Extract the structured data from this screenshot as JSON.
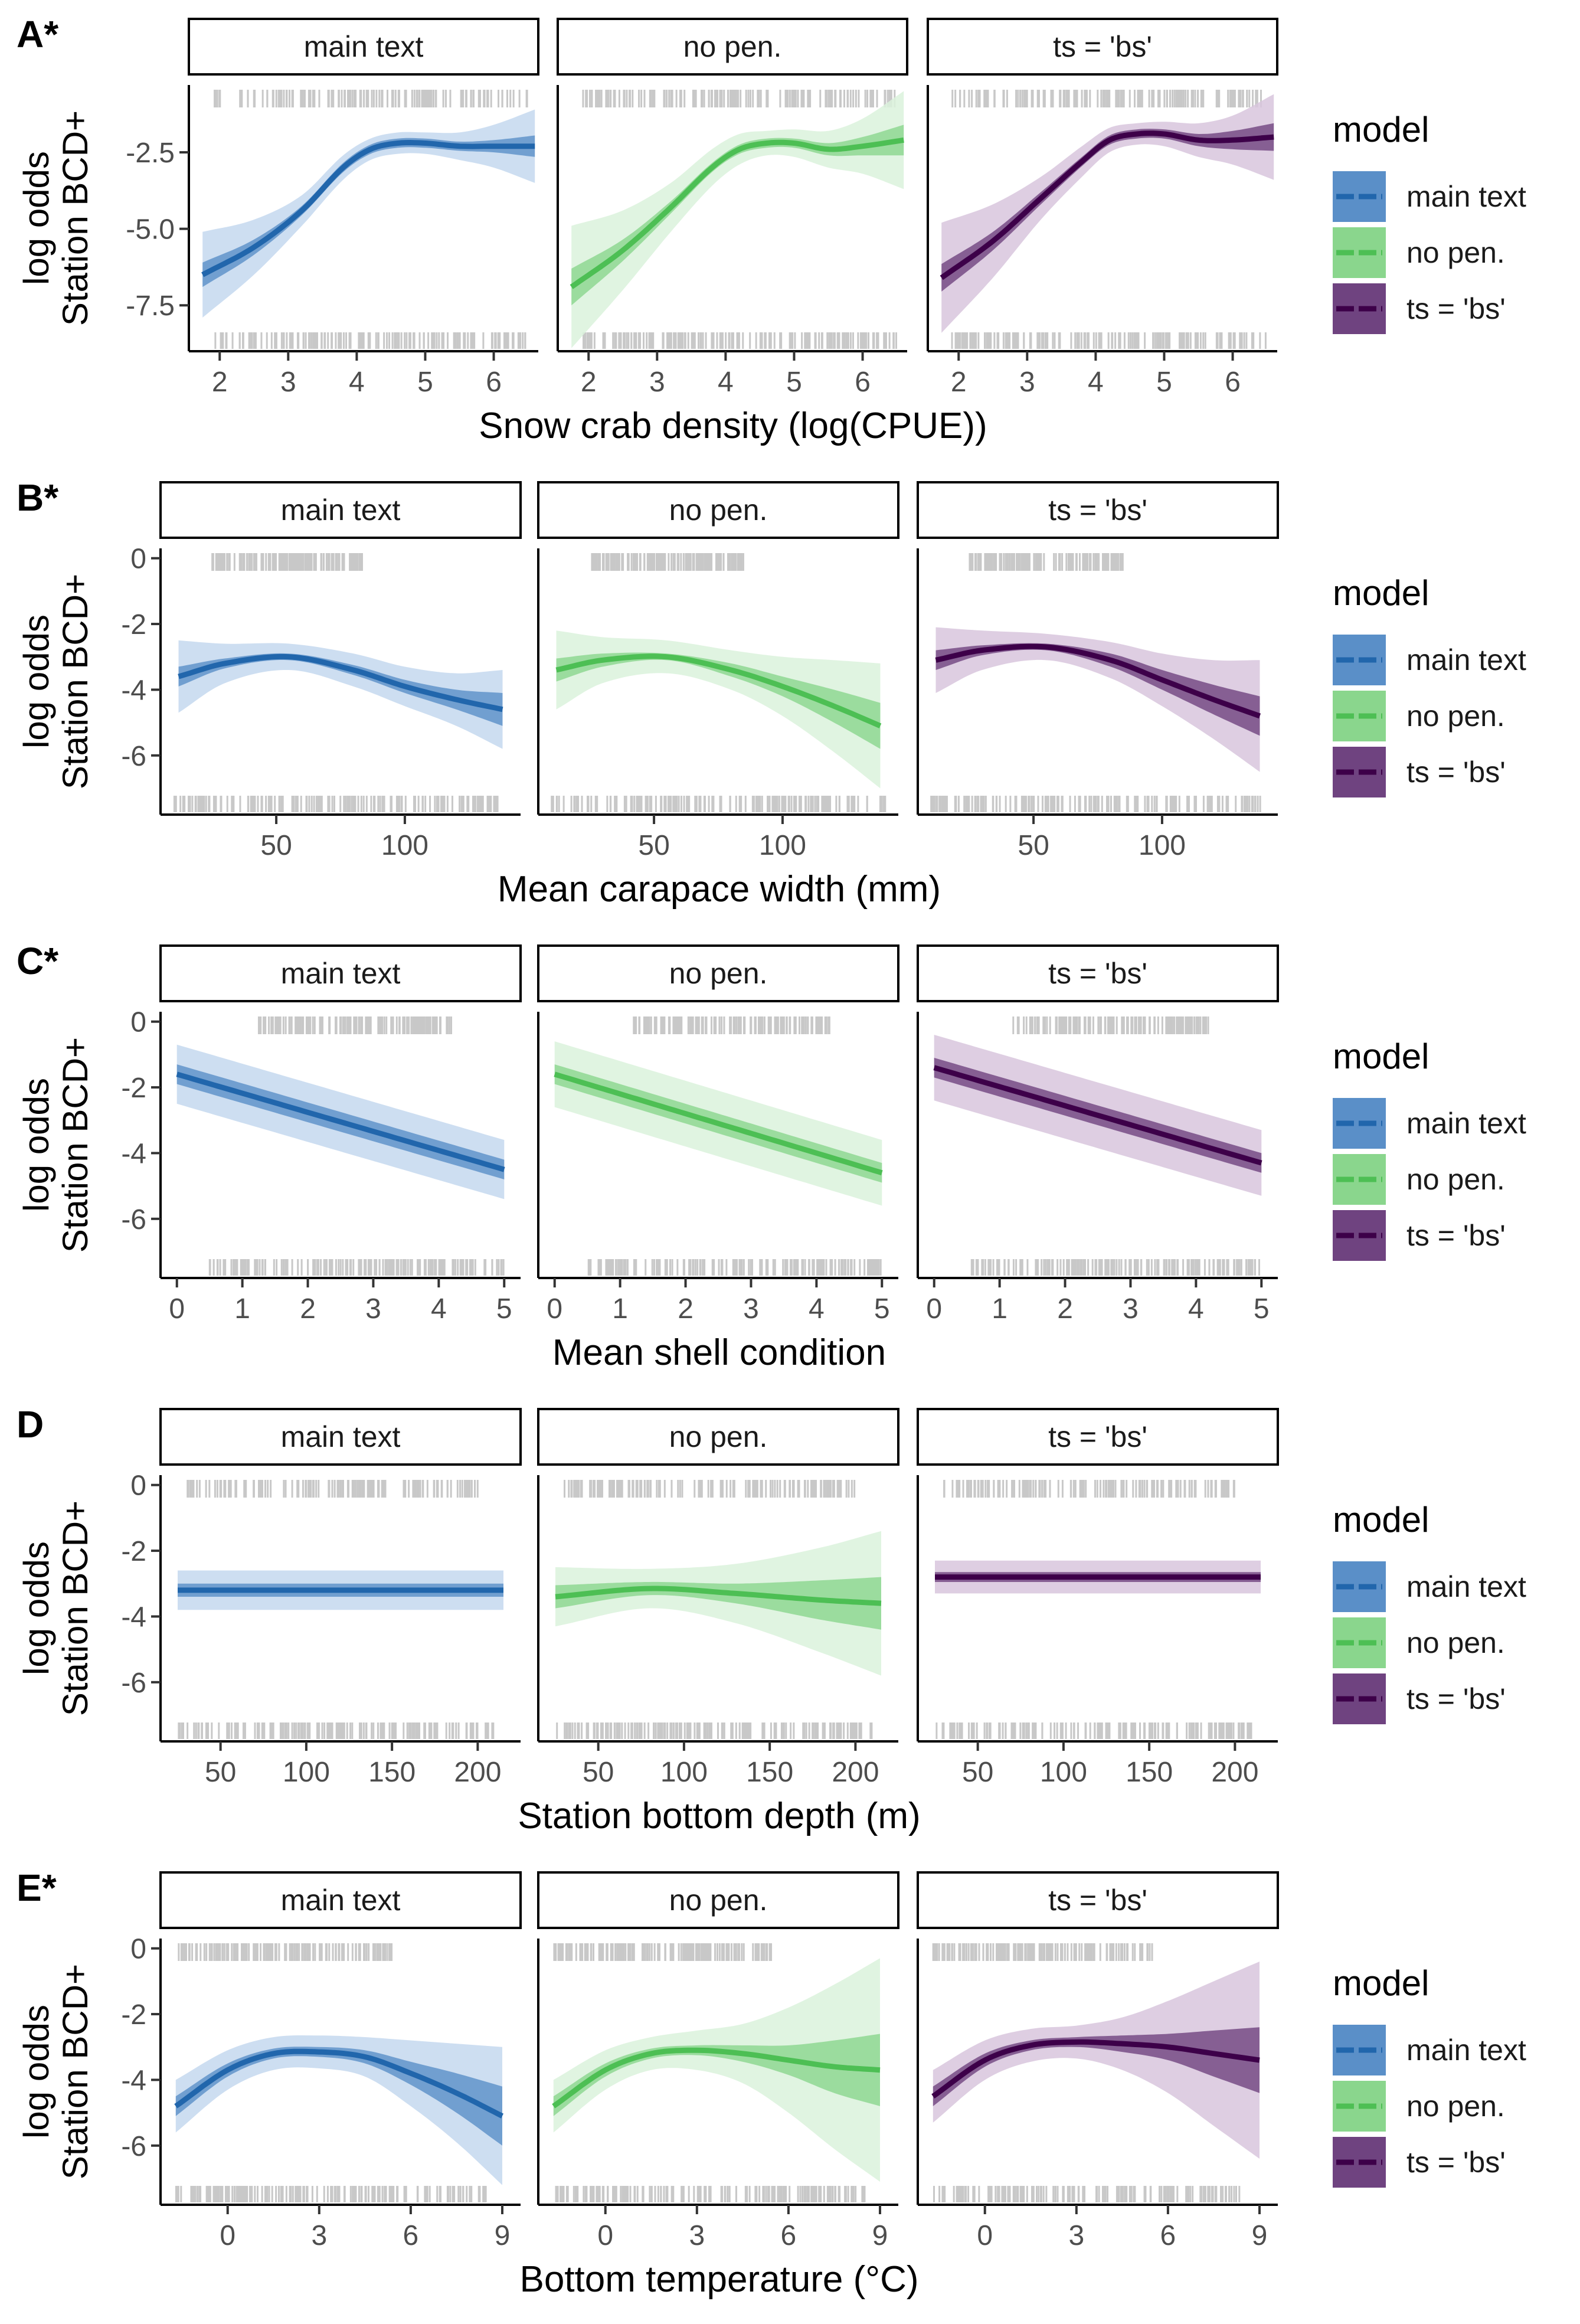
{
  "figure": {
    "ylabel": [
      "log odds",
      "Station BCD+"
    ],
    "facet_labels": [
      "main text",
      "no pen.",
      "ts = 'bs'"
    ],
    "legend": {
      "title": "model",
      "items": [
        {
          "label": "main text",
          "color": "#2166ac"
        },
        {
          "label": "no pen.",
          "color": "#4dbf54"
        },
        {
          "label": "ts = 'bs'",
          "color": "#3d0049"
        }
      ]
    },
    "colors": {
      "main text": {
        "line": "#2166ac",
        "inner": "#5a8fc8",
        "outer": "#c4d8ee"
      },
      "no pen.": {
        "line": "#4dbf54",
        "inner": "#8ad68d",
        "outer": "#dbf2dc"
      },
      "ts = 'bs'": {
        "line": "#3d0049",
        "inner": "#6f4380",
        "outer": "#d8c6dd"
      },
      "rug": "#c8c8c8"
    }
  },
  "chart_data": [
    {
      "id": "A",
      "tag": "A*",
      "type": "line",
      "xlabel": "Snow crab density (log(CPUE))",
      "xlim": [
        1.55,
        6.65
      ],
      "ylim": [
        -9.0,
        -0.3
      ],
      "xticks": [
        2,
        3,
        4,
        5,
        6
      ],
      "yticks": [
        -2.5,
        -5.0,
        -7.5
      ],
      "yticklabels": [
        "-2.5",
        "-5.0",
        "-7.5"
      ],
      "rug_x": [
        1.9,
        6.5
      ],
      "series": [
        {
          "name": "main text",
          "x": [
            1.75,
            2.5,
            3.2,
            3.8,
            4.2,
            4.6,
            5.0,
            5.5,
            6.0,
            6.6
          ],
          "y": [
            -6.5,
            -5.6,
            -4.4,
            -3.0,
            -2.4,
            -2.2,
            -2.2,
            -2.3,
            -2.3,
            -2.3
          ],
          "inner": [
            0.4,
            0.25,
            0.15,
            0.15,
            0.15,
            0.15,
            0.15,
            0.15,
            0.2,
            0.35
          ],
          "outer": [
            1.4,
            0.9,
            0.5,
            0.4,
            0.35,
            0.35,
            0.35,
            0.45,
            0.7,
            1.2
          ]
        },
        {
          "name": "no pen.",
          "x": [
            1.75,
            2.5,
            3.2,
            3.8,
            4.2,
            4.6,
            5.0,
            5.5,
            6.0,
            6.6
          ],
          "y": [
            -6.9,
            -5.7,
            -4.3,
            -3.0,
            -2.4,
            -2.2,
            -2.2,
            -2.4,
            -2.3,
            -2.1
          ],
          "inner": [
            0.6,
            0.35,
            0.2,
            0.15,
            0.15,
            0.15,
            0.15,
            0.2,
            0.3,
            0.5
          ],
          "outer": [
            2.0,
            1.3,
            0.8,
            0.6,
            0.5,
            0.4,
            0.45,
            0.6,
            0.9,
            1.6
          ]
        },
        {
          "name": "ts = 'bs'",
          "x": [
            1.75,
            2.5,
            3.2,
            3.8,
            4.2,
            4.6,
            5.0,
            5.5,
            6.0,
            6.6
          ],
          "y": [
            -6.6,
            -5.4,
            -4.0,
            -2.8,
            -2.1,
            -1.9,
            -1.9,
            -2.1,
            -2.1,
            -2.0
          ],
          "inner": [
            0.45,
            0.3,
            0.2,
            0.15,
            0.15,
            0.15,
            0.15,
            0.2,
            0.3,
            0.45
          ],
          "outer": [
            1.8,
            1.2,
            0.7,
            0.5,
            0.4,
            0.35,
            0.4,
            0.55,
            0.8,
            1.4
          ]
        }
      ]
    },
    {
      "id": "B",
      "tag": "B*",
      "type": "line",
      "xlabel": "Mean carapace width (mm)",
      "xlim": [
        5,
        145
      ],
      "ylim": [
        -7.8,
        0.3
      ],
      "xticks": [
        50,
        100
      ],
      "yticks": [
        0,
        -2,
        -4,
        -6
      ],
      "yticklabels": [
        "0",
        "-2",
        "-4",
        "-6"
      ],
      "rug_top": [
        25,
        85
      ],
      "rug_x": [
        10,
        140
      ],
      "series": [
        {
          "name": "main text",
          "x": [
            12,
            30,
            55,
            80,
            100,
            120,
            138
          ],
          "y": [
            -3.6,
            -3.2,
            -3.0,
            -3.4,
            -3.9,
            -4.3,
            -4.6
          ],
          "inner": [
            0.3,
            0.15,
            0.1,
            0.15,
            0.2,
            0.3,
            0.5
          ],
          "outer": [
            1.1,
            0.6,
            0.4,
            0.5,
            0.6,
            0.8,
            1.2
          ]
        },
        {
          "name": "no pen.",
          "x": [
            12,
            30,
            55,
            80,
            100,
            120,
            138
          ],
          "y": [
            -3.4,
            -3.1,
            -3.0,
            -3.4,
            -3.9,
            -4.5,
            -5.1
          ],
          "inner": [
            0.35,
            0.2,
            0.1,
            0.2,
            0.3,
            0.5,
            0.7
          ],
          "outer": [
            1.2,
            0.7,
            0.5,
            0.6,
            0.9,
            1.4,
            1.9
          ]
        },
        {
          "name": "ts = 'bs'",
          "x": [
            12,
            30,
            55,
            80,
            100,
            120,
            138
          ],
          "y": [
            -3.1,
            -2.8,
            -2.7,
            -3.1,
            -3.7,
            -4.3,
            -4.8
          ],
          "inner": [
            0.3,
            0.15,
            0.1,
            0.2,
            0.3,
            0.45,
            0.6
          ],
          "outer": [
            1.0,
            0.6,
            0.4,
            0.55,
            0.8,
            1.2,
            1.7
          ]
        }
      ]
    },
    {
      "id": "C",
      "tag": "C*",
      "type": "line",
      "xlabel": "Mean shell condition",
      "xlim": [
        -0.25,
        5.25
      ],
      "ylim": [
        -7.8,
        0.3
      ],
      "xticks": [
        0,
        1,
        2,
        3,
        4,
        5
      ],
      "yticks": [
        0,
        -2,
        -4,
        -6
      ],
      "yticklabels": [
        "0",
        "-2",
        "-4",
        "-6"
      ],
      "rug_top": [
        1.2,
        4.2
      ],
      "rug_x": [
        0.5,
        5.0
      ],
      "series": [
        {
          "name": "main text",
          "x": [
            0,
            5
          ],
          "y": [
            -1.6,
            -4.5
          ],
          "inner": [
            0.3,
            0.3
          ],
          "outer": [
            0.9,
            0.9
          ]
        },
        {
          "name": "no pen.",
          "x": [
            0,
            5
          ],
          "y": [
            -1.6,
            -4.6
          ],
          "inner": [
            0.3,
            0.3
          ],
          "outer": [
            1.0,
            1.0
          ]
        },
        {
          "name": "ts = 'bs'",
          "x": [
            0,
            5
          ],
          "y": [
            -1.4,
            -4.3
          ],
          "inner": [
            0.3,
            0.3
          ],
          "outer": [
            1.0,
            1.0
          ]
        }
      ]
    },
    {
      "id": "D",
      "tag": "D",
      "type": "line",
      "xlabel": "Station bottom depth (m)",
      "xlim": [
        15,
        225
      ],
      "ylim": [
        -7.8,
        0.3
      ],
      "xticks": [
        50,
        100,
        150,
        200
      ],
      "yticks": [
        0,
        -2,
        -4,
        -6
      ],
      "yticklabels": [
        "0",
        "-2",
        "-4",
        "-6"
      ],
      "rug_top": [
        30,
        200
      ],
      "rug_x": [
        25,
        210
      ],
      "series": [
        {
          "name": "main text",
          "x": [
            25,
            215
          ],
          "y": [
            -3.2,
            -3.2
          ],
          "inner": [
            0.2,
            0.2
          ],
          "outer": [
            0.6,
            0.6
          ]
        },
        {
          "name": "no pen.",
          "x": [
            25,
            80,
            130,
            180,
            215
          ],
          "y": [
            -3.4,
            -3.15,
            -3.3,
            -3.5,
            -3.6
          ],
          "inner": [
            0.35,
            0.2,
            0.3,
            0.6,
            0.8
          ],
          "outer": [
            0.9,
            0.6,
            0.9,
            1.6,
            2.2
          ]
        },
        {
          "name": "ts = 'bs'",
          "x": [
            25,
            215
          ],
          "y": [
            -2.8,
            -2.8
          ],
          "inner": [
            0.15,
            0.15
          ],
          "outer": [
            0.5,
            0.5
          ]
        }
      ]
    },
    {
      "id": "E",
      "tag": "E*",
      "type": "line",
      "xlabel": "Bottom temperature (°C)",
      "xlim": [
        -2.2,
        9.6
      ],
      "ylim": [
        -7.8,
        0.3
      ],
      "xticks": [
        0,
        3,
        6,
        9
      ],
      "yticks": [
        0,
        -2,
        -4,
        -6
      ],
      "yticklabels": [
        "0",
        "-2",
        "-4",
        "-6"
      ],
      "rug_top": [
        -1.7,
        5.5
      ],
      "rug_x": [
        -1.7,
        8.5
      ],
      "series": [
        {
          "name": "main text",
          "x": [
            -1.7,
            0,
            1.5,
            3,
            4.5,
            6,
            7.5,
            9
          ],
          "y": [
            -4.8,
            -3.7,
            -3.2,
            -3.15,
            -3.3,
            -3.8,
            -4.4,
            -5.1
          ],
          "inner": [
            0.3,
            0.2,
            0.15,
            0.15,
            0.2,
            0.35,
            0.6,
            0.9
          ],
          "outer": [
            0.8,
            0.6,
            0.5,
            0.5,
            0.6,
            1.0,
            1.5,
            2.1
          ]
        },
        {
          "name": "no pen.",
          "x": [
            -1.7,
            0,
            1.5,
            3,
            4.5,
            6,
            7.5,
            9
          ],
          "y": [
            -4.8,
            -3.7,
            -3.2,
            -3.1,
            -3.2,
            -3.4,
            -3.6,
            -3.7
          ],
          "inner": [
            0.3,
            0.2,
            0.15,
            0.15,
            0.25,
            0.45,
            0.8,
            1.1
          ],
          "outer": [
            0.8,
            0.6,
            0.5,
            0.6,
            0.9,
            1.6,
            2.5,
            3.4
          ]
        },
        {
          "name": "ts = 'bs'",
          "x": [
            -1.7,
            0,
            1.5,
            3,
            4.5,
            6,
            7.5,
            9
          ],
          "y": [
            -4.5,
            -3.4,
            -2.95,
            -2.85,
            -2.9,
            -3.0,
            -3.2,
            -3.4
          ],
          "inner": [
            0.3,
            0.2,
            0.15,
            0.15,
            0.25,
            0.4,
            0.7,
            1.0
          ],
          "outer": [
            0.8,
            0.6,
            0.5,
            0.5,
            0.8,
            1.4,
            2.2,
            3.0
          ]
        }
      ]
    }
  ]
}
